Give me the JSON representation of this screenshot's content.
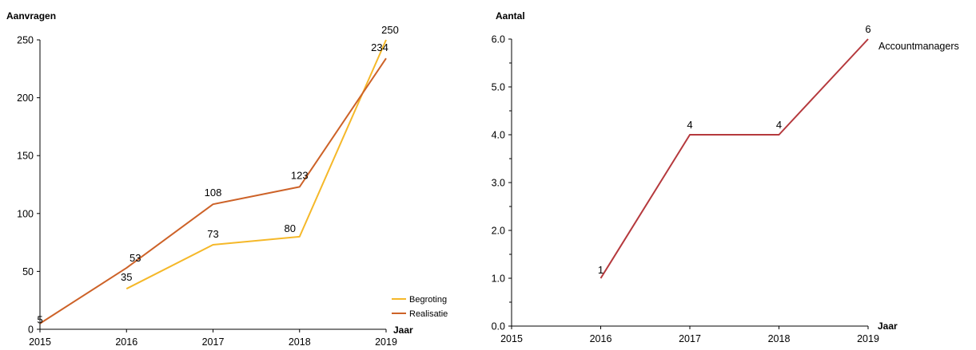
{
  "chart_data": [
    {
      "type": "line",
      "ylabel": "Aanvragen",
      "xlabel": "Jaar",
      "x_ticks": [
        "2015",
        "2016",
        "2017",
        "2018",
        "2019"
      ],
      "ylim": [
        0,
        250
      ],
      "y_ticks": [
        "0",
        "50",
        "100",
        "150",
        "200",
        "250"
      ],
      "series": [
        {
          "name": "Begroting",
          "color": "#F5B829",
          "x": [
            "2016",
            "2017",
            "2018",
            "2019"
          ],
          "values": [
            35,
            73,
            80,
            250
          ],
          "labels": [
            "35",
            "73",
            "80",
            "250"
          ]
        },
        {
          "name": "Realisatie",
          "color": "#CD6228",
          "x": [
            "2015",
            "2016",
            "2017",
            "2018",
            "2019"
          ],
          "values": [
            5,
            53,
            108,
            123,
            234
          ],
          "labels": [
            "5",
            "53",
            "108",
            "123",
            "234"
          ]
        }
      ],
      "legend": "bottom-right",
      "grid": false
    },
    {
      "type": "line",
      "ylabel": "Aantal",
      "xlabel": "Jaar",
      "x_ticks": [
        "2015",
        "2016",
        "2017",
        "2018",
        "2019"
      ],
      "ylim": [
        0,
        6
      ],
      "y_ticks": [
        "0.0",
        "1.0",
        "2.0",
        "3.0",
        "4.0",
        "5.0",
        "6.0"
      ],
      "series": [
        {
          "name": "Accountmanagers",
          "color": "#B5393D",
          "x": [
            "2016",
            "2017",
            "2018",
            "2019"
          ],
          "values": [
            1,
            4,
            4,
            6
          ],
          "labels": [
            "1",
            "4",
            "4",
            "6"
          ]
        }
      ],
      "legend": "none",
      "grid": false
    }
  ]
}
